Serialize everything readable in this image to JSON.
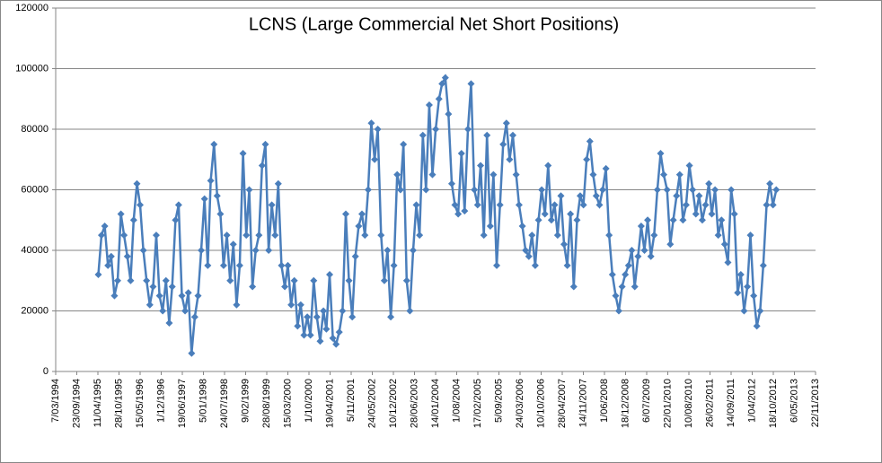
{
  "chart_data": {
    "type": "line",
    "title": "LCNS (Large Commercial Net Short Positions)",
    "x": [
      "1995-04-15",
      "1995-05-15",
      "1995-06-15",
      "1995-07-15",
      "1995-08-15",
      "1995-09-15",
      "1995-10-15",
      "1995-11-15",
      "1995-12-15",
      "1996-01-15",
      "1996-02-15",
      "1996-03-15",
      "1996-04-15",
      "1996-05-15",
      "1996-06-15",
      "1996-07-15",
      "1996-08-15",
      "1996-09-15",
      "1996-10-15",
      "1996-11-15",
      "1996-12-15",
      "1997-01-15",
      "1997-02-15",
      "1997-03-15",
      "1997-04-15",
      "1997-05-15",
      "1997-06-15",
      "1997-07-15",
      "1997-08-15",
      "1997-09-15",
      "1997-10-15",
      "1997-11-15",
      "1997-12-15",
      "1998-01-15",
      "1998-02-15",
      "1998-03-15",
      "1998-04-15",
      "1998-05-15",
      "1998-06-15",
      "1998-07-15",
      "1998-08-15",
      "1998-09-15",
      "1998-10-15",
      "1998-11-15",
      "1998-12-15",
      "1999-01-15",
      "1999-02-15",
      "1999-03-15",
      "1999-04-15",
      "1999-05-15",
      "1999-06-15",
      "1999-07-15",
      "1999-08-15",
      "1999-09-15",
      "1999-10-15",
      "1999-11-15",
      "1999-12-15",
      "2000-01-15",
      "2000-02-15",
      "2000-03-15",
      "2000-04-15",
      "2000-05-15",
      "2000-06-15",
      "2000-07-15",
      "2000-08-15",
      "2000-09-15",
      "2000-10-15",
      "2000-11-15",
      "2000-12-15",
      "2001-01-15",
      "2001-02-15",
      "2001-03-15",
      "2001-04-15",
      "2001-05-15",
      "2001-06-15",
      "2001-07-15",
      "2001-08-15",
      "2001-09-15",
      "2001-10-15",
      "2001-11-15",
      "2001-12-15",
      "2002-01-15",
      "2002-02-15",
      "2002-03-15",
      "2002-04-15",
      "2002-05-15",
      "2002-06-15",
      "2002-07-15",
      "2002-08-15",
      "2002-09-15",
      "2002-10-15",
      "2002-11-15",
      "2002-12-15",
      "2003-01-15",
      "2003-02-15",
      "2003-03-15",
      "2003-04-15",
      "2003-05-15",
      "2003-06-15",
      "2003-07-15",
      "2003-08-15",
      "2003-09-15",
      "2003-10-15",
      "2003-11-15",
      "2003-12-15",
      "2004-01-15",
      "2004-02-15",
      "2004-03-15",
      "2004-04-15",
      "2004-05-15",
      "2004-06-15",
      "2004-07-15",
      "2004-08-15",
      "2004-09-15",
      "2004-10-15",
      "2004-11-15",
      "2004-12-15",
      "2005-01-15",
      "2005-02-15",
      "2005-03-15",
      "2005-04-15",
      "2005-05-15",
      "2005-06-15",
      "2005-07-15",
      "2005-08-15",
      "2005-09-15",
      "2005-10-15",
      "2005-11-15",
      "2005-12-15",
      "2006-01-15",
      "2006-02-15",
      "2006-03-15",
      "2006-04-15",
      "2006-05-15",
      "2006-06-15",
      "2006-07-15",
      "2006-08-15",
      "2006-09-15",
      "2006-10-15",
      "2006-11-15",
      "2006-12-15",
      "2007-01-15",
      "2007-02-15",
      "2007-03-15",
      "2007-04-15",
      "2007-05-15",
      "2007-06-15",
      "2007-07-15",
      "2007-08-15",
      "2007-09-15",
      "2007-10-15",
      "2007-11-15",
      "2007-12-15",
      "2008-01-15",
      "2008-02-15",
      "2008-03-15",
      "2008-04-15",
      "2008-05-15",
      "2008-06-15",
      "2008-07-15",
      "2008-08-15",
      "2008-09-15",
      "2008-10-15",
      "2008-11-15",
      "2008-12-15",
      "2009-01-15",
      "2009-02-15",
      "2009-03-15",
      "2009-04-15",
      "2009-05-15",
      "2009-06-15",
      "2009-07-15",
      "2009-08-15",
      "2009-09-15",
      "2009-10-15",
      "2009-11-15",
      "2009-12-15",
      "2010-01-15",
      "2010-02-15",
      "2010-03-15",
      "2010-04-15",
      "2010-05-15",
      "2010-06-15",
      "2010-07-15",
      "2010-08-15",
      "2010-09-15",
      "2010-10-15",
      "2010-11-15",
      "2010-12-15",
      "2011-01-15",
      "2011-02-15",
      "2011-03-15",
      "2011-04-15",
      "2011-05-15",
      "2011-06-15",
      "2011-07-15",
      "2011-08-15",
      "2011-09-15",
      "2011-10-15",
      "2011-11-15",
      "2011-12-15",
      "2012-01-15",
      "2012-02-15",
      "2012-03-15",
      "2012-04-15",
      "2012-05-15",
      "2012-06-15",
      "2012-07-15",
      "2012-08-15",
      "2012-09-15",
      "2012-10-15",
      "2012-11-15"
    ],
    "series": [
      {
        "name": "LCNS",
        "color": "#4a7ebb",
        "values": [
          32000,
          45000,
          48000,
          35000,
          38000,
          25000,
          30000,
          52000,
          45000,
          38000,
          30000,
          50000,
          62000,
          55000,
          40000,
          30000,
          22000,
          28000,
          45000,
          25000,
          20000,
          30000,
          16000,
          28000,
          50000,
          55000,
          25000,
          20000,
          26000,
          6000,
          18000,
          25000,
          40000,
          57000,
          35000,
          63000,
          75000,
          58000,
          52000,
          35000,
          45000,
          30000,
          42000,
          22000,
          35000,
          72000,
          45000,
          60000,
          28000,
          40000,
          45000,
          68000,
          75000,
          40000,
          55000,
          45000,
          62000,
          35000,
          28000,
          35000,
          22000,
          30000,
          15000,
          22000,
          12000,
          18000,
          12000,
          30000,
          18000,
          10000,
          20000,
          14000,
          32000,
          11000,
          9000,
          13000,
          20000,
          52000,
          30000,
          18000,
          38000,
          48000,
          52000,
          45000,
          60000,
          82000,
          70000,
          80000,
          45000,
          30000,
          40000,
          18000,
          35000,
          65000,
          60000,
          75000,
          30000,
          20000,
          40000,
          55000,
          45000,
          78000,
          60000,
          88000,
          65000,
          80000,
          90000,
          95000,
          97000,
          85000,
          62000,
          55000,
          52000,
          72000,
          53000,
          80000,
          95000,
          60000,
          55000,
          68000,
          45000,
          78000,
          48000,
          65000,
          35000,
          55000,
          75000,
          82000,
          70000,
          78000,
          65000,
          55000,
          48000,
          40000,
          38000,
          45000,
          35000,
          50000,
          60000,
          52000,
          68000,
          50000,
          55000,
          45000,
          58000,
          42000,
          35000,
          52000,
          28000,
          50000,
          58000,
          55000,
          70000,
          76000,
          65000,
          58000,
          55000,
          60000,
          67000,
          45000,
          32000,
          25000,
          20000,
          28000,
          32000,
          35000,
          40000,
          28000,
          38000,
          48000,
          40000,
          50000,
          38000,
          45000,
          60000,
          72000,
          65000,
          60000,
          42000,
          50000,
          58000,
          65000,
          50000,
          55000,
          68000,
          60000,
          52000,
          58000,
          50000,
          55000,
          62000,
          52000,
          60000,
          45000,
          50000,
          42000,
          36000,
          60000,
          52000,
          26000,
          32000,
          20000,
          28000,
          45000,
          25000,
          15000,
          20000,
          35000,
          55000,
          62000,
          55000,
          60000
        ]
      }
    ],
    "xlim": [
      "1994-03-07",
      "2013-11-22"
    ],
    "xticks": [
      {
        "value": "1994-03-07",
        "label": "7/03/1994"
      },
      {
        "value": "1994-09-23",
        "label": "23/09/1994"
      },
      {
        "value": "1995-04-11",
        "label": "11/04/1995"
      },
      {
        "value": "1995-10-28",
        "label": "28/10/1995"
      },
      {
        "value": "1996-05-15",
        "label": "15/05/1996"
      },
      {
        "value": "1996-12-01",
        "label": "1/12/1996"
      },
      {
        "value": "1997-06-19",
        "label": "19/06/1997"
      },
      {
        "value": "1998-01-05",
        "label": "5/01/1998"
      },
      {
        "value": "1998-07-24",
        "label": "24/07/1998"
      },
      {
        "value": "1999-02-09",
        "label": "9/02/1999"
      },
      {
        "value": "1999-08-28",
        "label": "28/08/1999"
      },
      {
        "value": "2000-03-15",
        "label": "15/03/2000"
      },
      {
        "value": "2000-10-01",
        "label": "1/10/2000"
      },
      {
        "value": "2001-04-19",
        "label": "19/04/2001"
      },
      {
        "value": "2001-11-05",
        "label": "5/11/2001"
      },
      {
        "value": "2002-05-24",
        "label": "24/05/2002"
      },
      {
        "value": "2002-12-10",
        "label": "10/12/2002"
      },
      {
        "value": "2003-06-28",
        "label": "28/06/2003"
      },
      {
        "value": "2004-01-14",
        "label": "14/01/2004"
      },
      {
        "value": "2004-08-01",
        "label": "1/08/2004"
      },
      {
        "value": "2005-02-17",
        "label": "17/02/2005"
      },
      {
        "value": "2005-09-05",
        "label": "5/09/2005"
      },
      {
        "value": "2006-03-24",
        "label": "24/03/2006"
      },
      {
        "value": "2006-10-10",
        "label": "10/10/2006"
      },
      {
        "value": "2007-04-28",
        "label": "28/04/2007"
      },
      {
        "value": "2007-11-14",
        "label": "14/11/2007"
      },
      {
        "value": "2008-06-01",
        "label": "1/06/2008"
      },
      {
        "value": "2008-12-18",
        "label": "18/12/2008"
      },
      {
        "value": "2009-07-06",
        "label": "6/07/2009"
      },
      {
        "value": "2010-01-22",
        "label": "22/01/2010"
      },
      {
        "value": "2010-08-10",
        "label": "10/08/2010"
      },
      {
        "value": "2011-02-26",
        "label": "26/02/2011"
      },
      {
        "value": "2011-09-14",
        "label": "14/09/2011"
      },
      {
        "value": "2012-04-01",
        "label": "1/04/2012"
      },
      {
        "value": "2012-10-18",
        "label": "18/10/2012"
      },
      {
        "value": "2013-05-06",
        "label": "6/05/2013"
      },
      {
        "value": "2013-11-22",
        "label": "22/11/2013"
      }
    ],
    "ylim": [
      0,
      120000
    ],
    "yticks": [
      0,
      20000,
      40000,
      60000,
      80000,
      100000,
      120000
    ],
    "grid": true
  }
}
